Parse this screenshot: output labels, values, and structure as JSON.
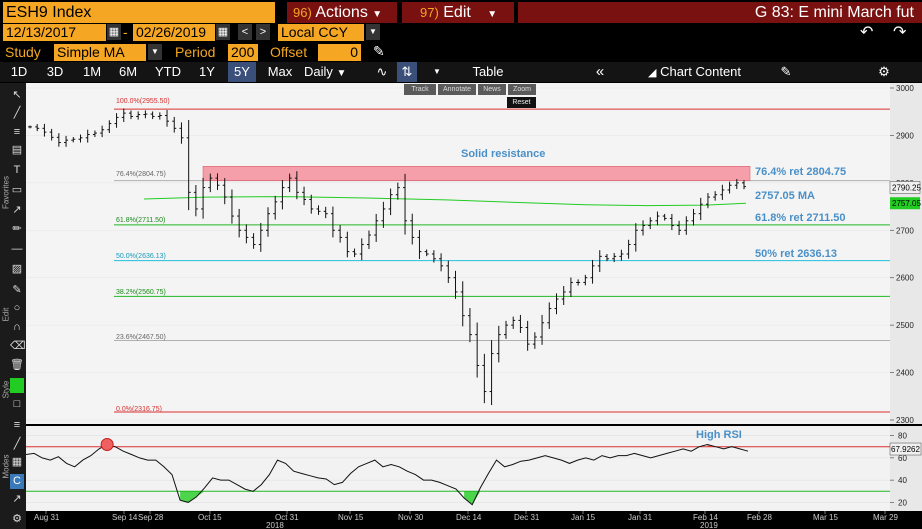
{
  "header": {
    "ticker": "ESH9 Index",
    "actions_num": "96)",
    "actions_label": "Actions",
    "edit_num": "97)",
    "edit_label": "Edit",
    "security": "G 83: E mini March fut"
  },
  "dates": {
    "start": "12/13/2017",
    "sep": "-",
    "end": "02/26/2019",
    "currency": "Local CCY"
  },
  "study": {
    "label": "Study",
    "value": "Simple MA",
    "period_label": "Period",
    "period": "200",
    "offset_label": "Offset",
    "offset": "0"
  },
  "toolbar": {
    "periods": [
      "1D",
      "3D",
      "1M",
      "6M",
      "YTD",
      "1Y",
      "5Y",
      "Max"
    ],
    "selected": "5Y",
    "frequency": "Daily",
    "table_label": "Table",
    "chart_content_label": "Chart Content"
  },
  "overlay": {
    "track": "Track",
    "annotate": "Annotate",
    "news": "News",
    "zoom": "Zoom",
    "reset": "Reset"
  },
  "sidebar": {
    "favorites": "Favorites",
    "edit": "Edit",
    "style": "Style",
    "modes": "Modes"
  },
  "colors": {
    "accent": "#f5a623",
    "resistance": "#f48a96",
    "ma": "#22cc22",
    "fib_red": "#d83030",
    "fib_green": "#22b822",
    "fib_cyan": "#22c0e0",
    "annotation": "#4a90c8"
  },
  "chart_data": [
    {
      "type": "line",
      "y_axis": {
        "ticks": [
          3000,
          2900,
          2800,
          2700,
          2600,
          2500,
          2400,
          2300
        ],
        "range": [
          2300,
          3000
        ],
        "side": "right"
      },
      "x_axis": {
        "ticks": [
          "Aug 31",
          "Sep 14",
          "Sep 28",
          "Oct 15",
          "Oct 31",
          "Nov 15",
          "Nov 30",
          "Dec 14",
          "Dec 31",
          "Jan 15",
          "Jan 31",
          "Feb 14",
          "Feb 28",
          "Mar 15",
          "Mar 29"
        ],
        "year_labels": [
          {
            "label": "2018",
            "near": "Oct 31"
          },
          {
            "label": "2019",
            "near": "Feb 14"
          }
        ]
      },
      "series": [
        {
          "values": [
            2918,
            2915,
            2907,
            2896,
            2885,
            2890,
            2892,
            2895,
            2902,
            2905,
            2912,
            2925,
            2938,
            2947,
            2940,
            2944,
            2945,
            2940,
            2942,
            2930,
            2915,
            2895,
            2780,
            2745,
            2790,
            2810,
            2795,
            2770,
            2730,
            2700,
            2685,
            2670,
            2700,
            2735,
            2760,
            2790,
            2810,
            2780,
            2765,
            2745,
            2740,
            2735,
            2700,
            2685,
            2655,
            2650,
            2670,
            2690,
            2720,
            2745,
            2775,
            2790,
            2720,
            2685,
            2655,
            2650,
            2640,
            2625,
            2600,
            2570,
            2520,
            2480,
            2415,
            2360,
            2440,
            2480,
            2500,
            2510,
            2495,
            2460,
            2475,
            2505,
            2535,
            2555,
            2570,
            2590,
            2590,
            2600,
            2625,
            2645,
            2640,
            2645,
            2650,
            2670,
            2700,
            2710,
            2720,
            2730,
            2725,
            2710,
            2700,
            2720,
            2735,
            2755,
            2770,
            2775,
            2785,
            2795,
            2800,
            2792
          ]
        }
      ],
      "moving_average": {
        "label": "2757.05 MA",
        "value": 2757.05,
        "period": 200
      },
      "last_price": "2790.25",
      "ma_tag": "2757.05",
      "fib_levels": [
        {
          "pct": "100.0%",
          "value": 2955.5,
          "label": "100.0%(2955.50)",
          "color": "#d83030"
        },
        {
          "pct": "76.4%",
          "value": 2804.75,
          "label": "76.4%(2804.75)",
          "color": "#b0b0b0"
        },
        {
          "pct": "61.8%",
          "value": 2711.5,
          "label": "61.8%(2711.50)",
          "color": "#22b822"
        },
        {
          "pct": "50.0%",
          "value": 2636.13,
          "label": "50.0%(2636.13)",
          "color": "#22c0e0"
        },
        {
          "pct": "38.2%",
          "value": 2560.75,
          "label": "38.2%(2560.75)",
          "color": "#22b822"
        },
        {
          "pct": "23.6%",
          "value": 2467.5,
          "label": "23.6%(2467.50)",
          "color": "#b0b0b0"
        },
        {
          "pct": "0.0%",
          "value": 2316.75,
          "label": "0.0%(2316.75)",
          "color": "#d83030"
        }
      ],
      "annotations": [
        {
          "text": "Solid resistance"
        },
        {
          "text": "76.4% ret 2804.75"
        },
        {
          "text": "61.8% ret 2711.50"
        },
        {
          "text": "50% ret 2636.13"
        }
      ],
      "resistance_zone": [
        2804.75,
        2835
      ]
    },
    {
      "type": "line",
      "name_label": "High RSI",
      "y_axis": {
        "ticks": [
          80,
          60,
          40,
          20
        ],
        "range": [
          15,
          85
        ]
      },
      "last_value": "67.9262",
      "overbought": 70,
      "oversold": 30,
      "series": [
        {
          "values": [
            63,
            64,
            60,
            58,
            61,
            55,
            52,
            58,
            62,
            68,
            72,
            70,
            66,
            63,
            60,
            58,
            58,
            52,
            45,
            22,
            20,
            25,
            33,
            42,
            40,
            40,
            36,
            32,
            30,
            36,
            45,
            58,
            55,
            48,
            46,
            44,
            42,
            41,
            36,
            38,
            46,
            52,
            55,
            58,
            52,
            54,
            52,
            48,
            45,
            40,
            40,
            38,
            35,
            32,
            24,
            18,
            33,
            46,
            58,
            52,
            54,
            57,
            58,
            60,
            62,
            60,
            58,
            55,
            58,
            60,
            58,
            62,
            60,
            62,
            62,
            64,
            62,
            60,
            62,
            64,
            66,
            68,
            66,
            70,
            72,
            70,
            68,
            70,
            68,
            66
          ]
        }
      ]
    }
  ]
}
